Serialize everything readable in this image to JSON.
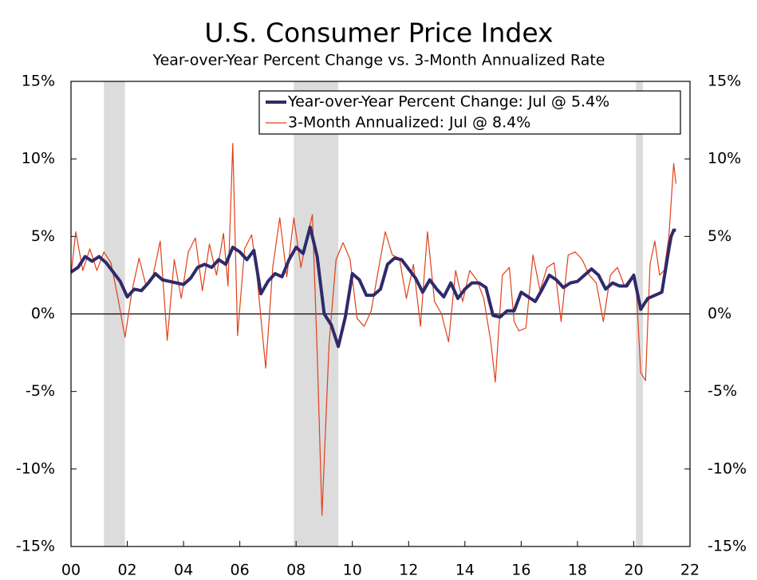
{
  "chart_data": {
    "type": "line",
    "title": "U.S. Consumer Price Index",
    "subtitle": "Year-over-Year Percent Change vs. 3-Month Annualized Rate",
    "xlim": [
      2000,
      2022
    ],
    "xticks": [
      {
        "value": 2000,
        "label": "00"
      },
      {
        "value": 2002,
        "label": "02"
      },
      {
        "value": 2004,
        "label": "04"
      },
      {
        "value": 2006,
        "label": "06"
      },
      {
        "value": 2008,
        "label": "08"
      },
      {
        "value": 2010,
        "label": "10"
      },
      {
        "value": 2012,
        "label": "12"
      },
      {
        "value": 2014,
        "label": "14"
      },
      {
        "value": 2016,
        "label": "16"
      },
      {
        "value": 2018,
        "label": "18"
      },
      {
        "value": 2020,
        "label": "20"
      },
      {
        "value": 2022,
        "label": "22"
      }
    ],
    "ylim": [
      -15,
      15
    ],
    "yticks": [
      {
        "value": -15,
        "label": "-15%"
      },
      {
        "value": -10,
        "label": "-10%"
      },
      {
        "value": -5,
        "label": "-5%"
      },
      {
        "value": 0,
        "label": "0%"
      },
      {
        "value": 5,
        "label": "5%"
      },
      {
        "value": 10,
        "label": "10%"
      },
      {
        "value": 15,
        "label": "15%"
      }
    ],
    "recessions": [
      [
        2001.17,
        2001.92
      ],
      [
        2007.92,
        2009.5
      ],
      [
        2020.08,
        2020.33
      ]
    ],
    "legend": "upper right",
    "series": [
      {
        "name": "Year-over-Year Percent Change: Jul @ 5.4%",
        "color": "#2e2a6b",
        "width": 4,
        "x": [
          2000,
          2000.25,
          2000.5,
          2000.75,
          2001,
          2001.25,
          2001.5,
          2001.75,
          2002,
          2002.25,
          2002.5,
          2002.75,
          2003,
          2003.25,
          2003.5,
          2003.75,
          2004,
          2004.25,
          2004.5,
          2004.75,
          2005,
          2005.25,
          2005.5,
          2005.75,
          2006,
          2006.25,
          2006.5,
          2006.75,
          2007,
          2007.25,
          2007.5,
          2007.75,
          2008,
          2008.25,
          2008.5,
          2008.75,
          2009,
          2009.25,
          2009.5,
          2009.75,
          2010,
          2010.25,
          2010.5,
          2010.75,
          2011,
          2011.25,
          2011.5,
          2011.75,
          2012,
          2012.25,
          2012.5,
          2012.75,
          2013,
          2013.25,
          2013.5,
          2013.75,
          2014,
          2014.25,
          2014.5,
          2014.75,
          2015,
          2015.25,
          2015.5,
          2015.75,
          2016,
          2016.25,
          2016.5,
          2016.75,
          2017,
          2017.25,
          2017.5,
          2017.75,
          2018,
          2018.25,
          2018.5,
          2018.75,
          2019,
          2019.25,
          2019.5,
          2019.75,
          2020,
          2020.25,
          2020.5,
          2020.75,
          2021,
          2021.25,
          2021.33,
          2021.42,
          2021.5
        ],
        "values": [
          2.7,
          3.0,
          3.7,
          3.4,
          3.7,
          3.3,
          2.7,
          2.1,
          1.1,
          1.6,
          1.5,
          2.0,
          2.6,
          2.2,
          2.1,
          2.0,
          1.9,
          2.3,
          3.0,
          3.2,
          3.0,
          3.5,
          3.2,
          4.3,
          4.0,
          3.5,
          4.1,
          1.3,
          2.1,
          2.6,
          2.4,
          3.5,
          4.3,
          3.9,
          5.6,
          3.7,
          0.0,
          -0.7,
          -2.1,
          -0.2,
          2.6,
          2.2,
          1.2,
          1.2,
          1.6,
          3.2,
          3.6,
          3.5,
          2.9,
          2.3,
          1.4,
          2.2,
          1.6,
          1.1,
          2.0,
          1.0,
          1.6,
          2.0,
          2.0,
          1.7,
          -0.1,
          -0.2,
          0.2,
          0.2,
          1.4,
          1.1,
          0.8,
          1.6,
          2.5,
          2.2,
          1.7,
          2.0,
          2.1,
          2.5,
          2.9,
          2.5,
          1.6,
          2.0,
          1.8,
          1.8,
          2.5,
          0.3,
          1.0,
          1.2,
          1.4,
          4.2,
          5.0,
          5.4,
          5.4
        ]
      },
      {
        "name": "3-Month Annualized: Jul @ 8.4%",
        "color": "#e0401a",
        "width": 1.2,
        "x": [
          2000,
          2000.17,
          2000.42,
          2000.67,
          2000.92,
          2001.17,
          2001.42,
          2001.67,
          2001.92,
          2002.17,
          2002.42,
          2002.67,
          2002.92,
          2003.17,
          2003.42,
          2003.67,
          2003.92,
          2004.17,
          2004.42,
          2004.67,
          2004.92,
          2005.17,
          2005.42,
          2005.58,
          2005.75,
          2005.92,
          2006.17,
          2006.42,
          2006.58,
          2006.92,
          2007.17,
          2007.42,
          2007.67,
          2007.92,
          2008.17,
          2008.42,
          2008.58,
          2008.75,
          2008.92,
          2009.17,
          2009.42,
          2009.67,
          2009.92,
          2010.17,
          2010.42,
          2010.67,
          2010.92,
          2011.17,
          2011.42,
          2011.67,
          2011.92,
          2012.17,
          2012.42,
          2012.67,
          2012.92,
          2013.17,
          2013.42,
          2013.67,
          2013.92,
          2014.17,
          2014.42,
          2014.67,
          2014.92,
          2015.08,
          2015.33,
          2015.58,
          2015.75,
          2015.92,
          2016.17,
          2016.42,
          2016.67,
          2016.92,
          2017.17,
          2017.42,
          2017.67,
          2017.92,
          2018.17,
          2018.42,
          2018.67,
          2018.92,
          2019.17,
          2019.42,
          2019.67,
          2019.92,
          2020.08,
          2020.25,
          2020.42,
          2020.58,
          2020.75,
          2020.92,
          2021.08,
          2021.25,
          2021.42,
          2021.5
        ],
        "values": [
          2.5,
          5.3,
          2.8,
          4.2,
          2.8,
          4.0,
          3.3,
          1.0,
          -1.5,
          1.5,
          3.6,
          1.8,
          2.5,
          4.7,
          -1.7,
          3.5,
          1.0,
          4.0,
          4.9,
          1.5,
          4.5,
          2.5,
          5.2,
          1.8,
          11.0,
          -1.4,
          4.2,
          5.1,
          3.0,
          -3.5,
          3.0,
          6.2,
          2.4,
          6.2,
          3.0,
          5.2,
          6.4,
          -2.5,
          -13.0,
          -2.0,
          3.5,
          4.6,
          3.5,
          -0.3,
          -0.8,
          0.2,
          2.8,
          5.3,
          3.8,
          3.6,
          1.0,
          3.2,
          -0.8,
          5.3,
          0.8,
          0.0,
          -1.8,
          2.8,
          0.8,
          2.8,
          2.2,
          1.0,
          -1.8,
          -4.4,
          2.5,
          3.0,
          -0.5,
          -1.1,
          -0.9,
          3.8,
          1.5,
          3.0,
          3.3,
          -0.5,
          3.8,
          4.0,
          3.5,
          2.5,
          2.0,
          -0.5,
          2.5,
          3.0,
          1.8,
          2.4,
          2.0,
          -3.8,
          -4.3,
          3.2,
          4.7,
          2.5,
          2.8,
          5.0,
          9.7,
          8.4
        ]
      }
    ]
  }
}
